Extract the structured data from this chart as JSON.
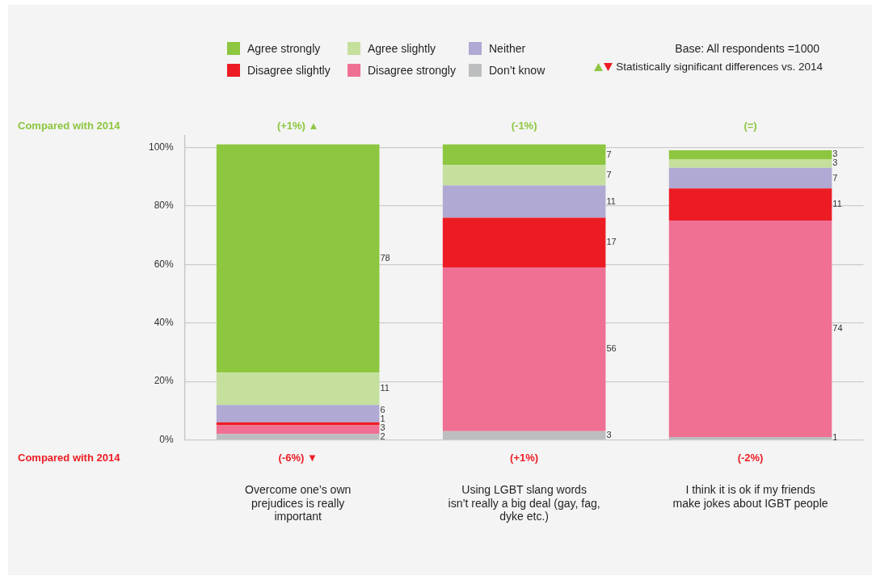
{
  "chart_data": {
    "type": "bar",
    "stacked": true,
    "categories": [
      "Overcome one’s own\nprejudices is really\nimportant",
      "Using LGBT slang words\nisn’t really a big deal (gay, fag,\ndyke etc.)",
      "I think it is ok if my friends\nmake jokes about IGBT people"
    ],
    "series": [
      {
        "name": "Don’t know",
        "color": "#bcbec0",
        "values": [
          2,
          3,
          1
        ]
      },
      {
        "name": "Disagree strongly",
        "color": "#f07093",
        "values": [
          3,
          56,
          74
        ]
      },
      {
        "name": "Disagree slightly",
        "color": "#ed1c24",
        "values": [
          1,
          17,
          11
        ]
      },
      {
        "name": "Neither",
        "color": "#afa9d3",
        "values": [
          6,
          11,
          7
        ]
      },
      {
        "name": "Agree slightly",
        "color": "#c5df9c",
        "values": [
          11,
          7,
          3
        ]
      },
      {
        "name": "Agree strongly",
        "color": "#8dc63f",
        "values": [
          78,
          7,
          3
        ]
      }
    ],
    "ylim": [
      0,
      104
    ],
    "yticks": [
      {
        "value": 0,
        "label": "0%"
      },
      {
        "value": 20,
        "label": "20%"
      },
      {
        "value": 40,
        "label": "40%"
      },
      {
        "value": 60,
        "label": "60%"
      },
      {
        "value": 80,
        "label": "80%"
      },
      {
        "value": 100,
        "label": "100%"
      }
    ],
    "grid": "y",
    "legend": "top",
    "data_labels": true,
    "annotations": [
      "Base: All respondents =1000",
      "Statistically significant differences vs. 2014",
      "Compared with 2014",
      "(+1%) ▲",
      "(-1%)",
      "(=)",
      "Compared with 2014",
      "(-6%) ▼",
      "(+1%)",
      "(-2%)"
    ]
  }
}
